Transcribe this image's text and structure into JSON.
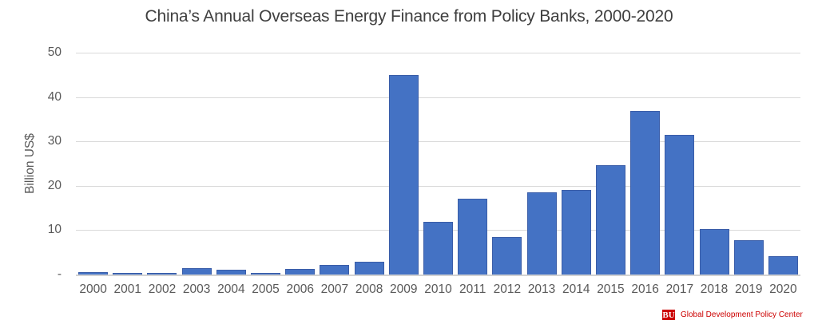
{
  "chart_data": {
    "type": "bar",
    "title": "China’s Annual Overseas Energy Finance from Policy Banks, 2000-2020",
    "xlabel": "",
    "ylabel": "Billion US$",
    "categories": [
      "2000",
      "2001",
      "2002",
      "2003",
      "2004",
      "2005",
      "2006",
      "2007",
      "2008",
      "2009",
      "2010",
      "2011",
      "2012",
      "2013",
      "2014",
      "2015",
      "2016",
      "2017",
      "2018",
      "2019",
      "2020"
    ],
    "values": [
      0.5,
      0.4,
      0.4,
      1.4,
      1.0,
      0.4,
      1.2,
      2.1,
      2.8,
      44.9,
      11.8,
      17.0,
      8.5,
      18.6,
      19.0,
      24.6,
      36.8,
      31.4,
      10.3,
      7.8,
      4.2
    ],
    "ylim": [
      0,
      50
    ],
    "yticks": [
      {
        "value": 0,
        "label": "-"
      },
      {
        "value": 10,
        "label": "10"
      },
      {
        "value": 20,
        "label": "20"
      },
      {
        "value": 30,
        "label": "30"
      },
      {
        "value": 40,
        "label": "40"
      },
      {
        "value": 50,
        "label": "50"
      }
    ],
    "grid": true,
    "legend": false,
    "colors": {
      "bar_fill": "#4472C4",
      "bar_border": "#3A5DA8",
      "gridline": "#D9D9D9",
      "axis_line": "#D2D2D2",
      "axis_text": "#595959",
      "title_text": "#3F3F3F"
    }
  },
  "footer": {
    "logo_text": "BU",
    "logo_label": "Global Development Policy Center",
    "logo_color": "#CC0000"
  }
}
